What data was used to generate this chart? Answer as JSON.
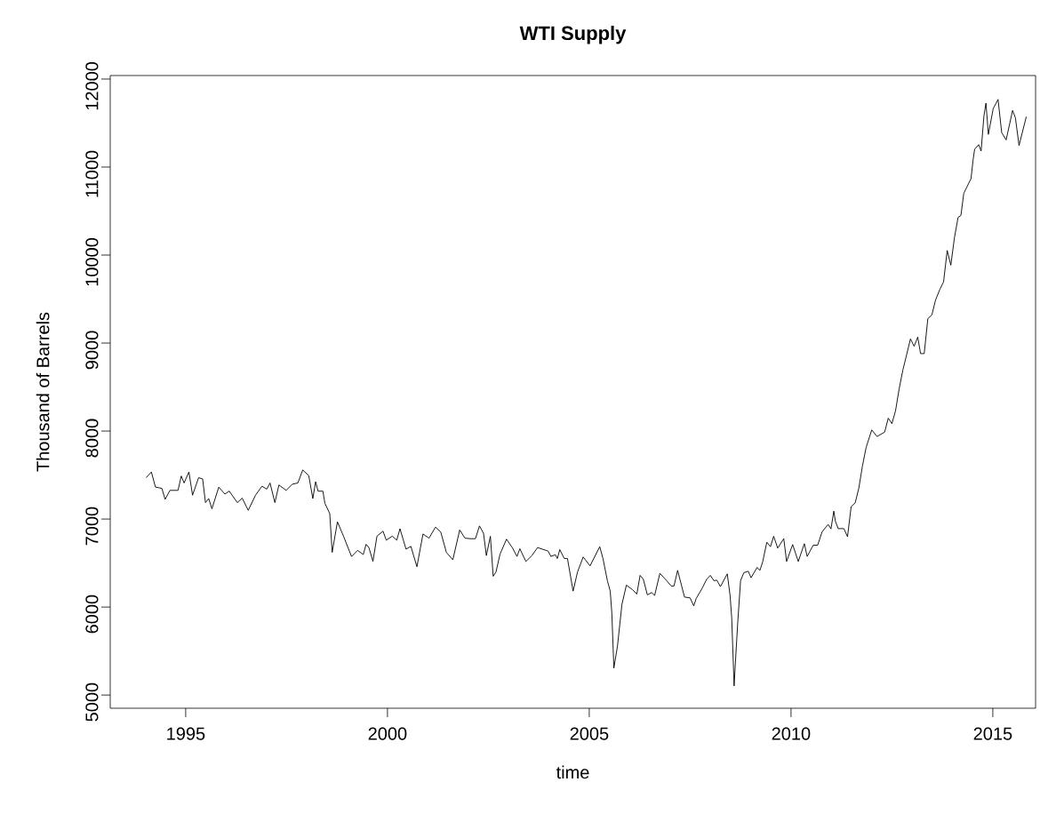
{
  "chart_data": {
    "type": "line",
    "title": "WTI Supply",
    "xlabel": "time",
    "ylabel": "Thousand of Barrels",
    "color": "#000000",
    "xlim": [
      1993.13,
      2016.06
    ],
    "ylim": [
      4850,
      12040
    ],
    "xticks": [
      1995,
      2000,
      2005,
      2010,
      2015
    ],
    "yticks": [
      5000,
      6000,
      7000,
      8000,
      9000,
      10000,
      11000,
      12000
    ],
    "x": [
      1994.02,
      1994.15,
      1994.25,
      1994.41,
      1994.49,
      1994.61,
      1994.81,
      1994.89,
      1994.96,
      1995.08,
      1995.17,
      1995.32,
      1995.42,
      1995.49,
      1995.57,
      1995.65,
      1995.82,
      1995.97,
      1996.08,
      1996.28,
      1996.4,
      1996.55,
      1996.73,
      1996.89,
      1997.01,
      1997.09,
      1997.21,
      1997.31,
      1997.49,
      1997.64,
      1997.78,
      1997.9,
      1998.05,
      1998.15,
      1998.22,
      1998.28,
      1998.4,
      1998.45,
      1998.57,
      1998.63,
      1998.76,
      1998.91,
      1999.11,
      1999.26,
      1999.4,
      1999.47,
      1999.54,
      1999.64,
      1999.74,
      1999.89,
      1999.97,
      2000.12,
      2000.23,
      2000.31,
      2000.46,
      2000.58,
      2000.73,
      2000.88,
      2001.03,
      2001.19,
      2001.32,
      2001.46,
      2001.62,
      2001.79,
      2001.92,
      2002.05,
      2002.18,
      2002.28,
      2002.38,
      2002.45,
      2002.55,
      2002.62,
      2002.69,
      2002.79,
      2002.95,
      2003.1,
      2003.21,
      2003.28,
      2003.43,
      2003.58,
      2003.72,
      2003.98,
      2004.05,
      2004.16,
      2004.21,
      2004.27,
      2004.38,
      2004.46,
      2004.6,
      2004.71,
      2004.85,
      2005.02,
      2005.26,
      2005.34,
      2005.45,
      2005.52,
      2005.56,
      2005.61,
      2005.7,
      2005.81,
      2005.92,
      2006.07,
      2006.18,
      2006.26,
      2006.34,
      2006.44,
      2006.55,
      2006.62,
      2006.75,
      2006.92,
      2007.03,
      2007.1,
      2007.19,
      2007.36,
      2007.5,
      2007.59,
      2007.65,
      2007.8,
      2007.91,
      2008.0,
      2008.09,
      2008.16,
      2008.25,
      2008.42,
      2008.49,
      2008.53,
      2008.57,
      2008.59,
      2008.62,
      2008.68,
      2008.75,
      2008.83,
      2008.94,
      2009.01,
      2009.16,
      2009.23,
      2009.3,
      2009.4,
      2009.49,
      2009.57,
      2009.67,
      2009.82,
      2009.89,
      2010.04,
      2010.18,
      2010.33,
      2010.4,
      2010.55,
      2010.66,
      2010.77,
      2010.92,
      2010.99,
      2011.06,
      2011.1,
      2011.17,
      2011.31,
      2011.4,
      2011.49,
      2011.59,
      2011.68,
      2011.77,
      2011.86,
      2012.0,
      2012.13,
      2012.32,
      2012.41,
      2012.5,
      2012.59,
      2012.68,
      2012.77,
      2012.86,
      2012.96,
      2013.05,
      2013.14,
      2013.21,
      2013.3,
      2013.39,
      2013.49,
      2013.58,
      2013.69,
      2013.78,
      2013.87,
      2013.96,
      2014.05,
      2014.14,
      2014.21,
      2014.28,
      2014.46,
      2014.51,
      2014.55,
      2014.65,
      2014.71,
      2014.78,
      2014.83,
      2014.89,
      2015.01,
      2015.13,
      2015.22,
      2015.33,
      2015.49,
      2015.56,
      2015.65,
      2015.83
    ],
    "values": [
      7470,
      7535,
      7363,
      7349,
      7224,
      7326,
      7326,
      7489,
      7410,
      7535,
      7271,
      7470,
      7456,
      7187,
      7233,
      7117,
      7363,
      7284,
      7317,
      7187,
      7238,
      7099,
      7271,
      7373,
      7340,
      7410,
      7187,
      7387,
      7326,
      7396,
      7410,
      7558,
      7493,
      7233,
      7424,
      7317,
      7317,
      7178,
      7062,
      6621,
      6969,
      6806,
      6574,
      6644,
      6597,
      6713,
      6676,
      6519,
      6806,
      6862,
      6760,
      6806,
      6760,
      6890,
      6658,
      6690,
      6458,
      6830,
      6783,
      6908,
      6853,
      6621,
      6537,
      6876,
      6783,
      6777,
      6777,
      6922,
      6838,
      6585,
      6804,
      6350,
      6400,
      6602,
      6771,
      6670,
      6575,
      6663,
      6518,
      6585,
      6676,
      6636,
      6575,
      6595,
      6552,
      6653,
      6552,
      6552,
      6181,
      6400,
      6569,
      6468,
      6686,
      6552,
      6299,
      6181,
      5929,
      5306,
      5558,
      6030,
      6249,
      6198,
      6148,
      6360,
      6316,
      6138,
      6165,
      6131,
      6383,
      6299,
      6239,
      6239,
      6417,
      6114,
      6104,
      6013,
      6097,
      6215,
      6316,
      6360,
      6299,
      6306,
      6232,
      6377,
      6131,
      5878,
      5356,
      5104,
      5356,
      5828,
      6299,
      6390,
      6407,
      6333,
      6451,
      6417,
      6518,
      6737,
      6686,
      6804,
      6670,
      6777,
      6518,
      6710,
      6518,
      6720,
      6575,
      6703,
      6703,
      6855,
      6939,
      6888,
      7090,
      6973,
      6891,
      6891,
      6799,
      7142,
      7184,
      7351,
      7603,
      7812,
      8013,
      7938,
      7988,
      8147,
      8084,
      8231,
      8482,
      8691,
      8859,
      9047,
      8963,
      9068,
      8880,
      8880,
      9277,
      9319,
      9487,
      9612,
      9696,
      10052,
      9885,
      10199,
      10429,
      10450,
      10701,
      10868,
      11078,
      11203,
      11254,
      11182,
      11580,
      11727,
      11371,
      11664,
      11769,
      11392,
      11308,
      11643,
      11559,
      11245,
      11572
    ]
  }
}
